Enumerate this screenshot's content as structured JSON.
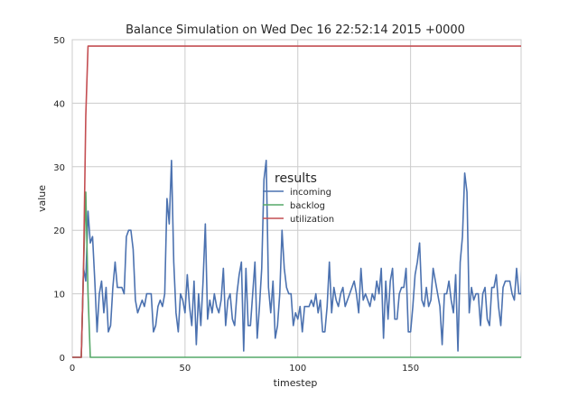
{
  "chart_data": {
    "type": "line",
    "title": "Balance Simulation on Wed Dec 16 22:52:14 2015 +0000",
    "xlabel": "timestep",
    "ylabel": "value",
    "xlim": [
      0,
      199
    ],
    "ylim": [
      0,
      50
    ],
    "xticks": [
      0,
      50,
      100,
      150
    ],
    "yticks": [
      0,
      10,
      20,
      30,
      40,
      50
    ],
    "grid": true,
    "legend": {
      "title": "results",
      "placement": "center"
    },
    "series": [
      {
        "name": "incoming",
        "color": "#4c72b0",
        "points": [
          [
            0,
            0
          ],
          [
            4,
            0
          ],
          [
            5,
            14
          ],
          [
            6,
            12
          ],
          [
            7,
            23
          ],
          [
            8,
            18
          ],
          [
            9,
            19
          ],
          [
            10,
            12
          ],
          [
            11,
            4
          ],
          [
            12,
            10
          ],
          [
            13,
            12
          ],
          [
            14,
            7
          ],
          [
            15,
            11
          ],
          [
            16,
            4
          ],
          [
            17,
            5
          ],
          [
            18,
            11
          ],
          [
            19,
            15
          ],
          [
            20,
            11
          ],
          [
            21,
            11
          ],
          [
            22,
            11
          ],
          [
            23,
            10
          ],
          [
            24,
            19
          ],
          [
            25,
            20
          ],
          [
            26,
            20
          ],
          [
            27,
            17
          ],
          [
            28,
            9
          ],
          [
            29,
            7
          ],
          [
            30,
            8
          ],
          [
            31,
            9
          ],
          [
            32,
            8
          ],
          [
            33,
            10
          ],
          [
            34,
            10
          ],
          [
            35,
            10
          ],
          [
            36,
            4
          ],
          [
            37,
            5
          ],
          [
            38,
            8
          ],
          [
            39,
            9
          ],
          [
            40,
            8
          ],
          [
            41,
            10
          ],
          [
            42,
            25
          ],
          [
            43,
            21
          ],
          [
            44,
            31
          ],
          [
            45,
            15
          ],
          [
            46,
            7
          ],
          [
            47,
            4
          ],
          [
            48,
            10
          ],
          [
            49,
            9
          ],
          [
            50,
            7
          ],
          [
            51,
            13
          ],
          [
            52,
            8
          ],
          [
            53,
            5
          ],
          [
            54,
            12
          ],
          [
            55,
            2
          ],
          [
            56,
            10
          ],
          [
            57,
            5
          ],
          [
            58,
            12
          ],
          [
            59,
            21
          ],
          [
            60,
            6
          ],
          [
            61,
            9
          ],
          [
            62,
            7
          ],
          [
            63,
            10
          ],
          [
            64,
            8
          ],
          [
            65,
            7
          ],
          [
            66,
            9
          ],
          [
            67,
            14
          ],
          [
            68,
            5
          ],
          [
            69,
            9
          ],
          [
            70,
            10
          ],
          [
            71,
            6
          ],
          [
            72,
            5
          ],
          [
            73,
            10
          ],
          [
            74,
            13
          ],
          [
            75,
            15
          ],
          [
            76,
            1
          ],
          [
            77,
            14
          ],
          [
            78,
            5
          ],
          [
            79,
            5
          ],
          [
            80,
            10
          ],
          [
            81,
            15
          ],
          [
            82,
            3
          ],
          [
            83,
            8
          ],
          [
            84,
            14
          ],
          [
            85,
            28
          ],
          [
            86,
            31
          ],
          [
            87,
            11
          ],
          [
            88,
            7
          ],
          [
            89,
            12
          ],
          [
            90,
            3
          ],
          [
            91,
            5
          ],
          [
            92,
            10
          ],
          [
            93,
            20
          ],
          [
            94,
            14
          ],
          [
            95,
            11
          ],
          [
            96,
            10
          ],
          [
            97,
            10
          ],
          [
            98,
            5
          ],
          [
            99,
            7
          ],
          [
            100,
            6
          ],
          [
            101,
            8
          ],
          [
            102,
            4
          ],
          [
            103,
            8
          ],
          [
            104,
            8
          ],
          [
            105,
            8
          ],
          [
            106,
            9
          ],
          [
            107,
            8
          ],
          [
            108,
            10
          ],
          [
            109,
            7
          ],
          [
            110,
            9
          ],
          [
            111,
            4
          ],
          [
            112,
            4
          ],
          [
            113,
            8
          ],
          [
            114,
            15
          ],
          [
            115,
            7
          ],
          [
            116,
            11
          ],
          [
            117,
            9
          ],
          [
            118,
            8
          ],
          [
            119,
            10
          ],
          [
            120,
            11
          ],
          [
            121,
            8
          ],
          [
            122,
            9
          ],
          [
            123,
            10
          ],
          [
            124,
            11
          ],
          [
            125,
            12
          ],
          [
            126,
            10
          ],
          [
            127,
            7
          ],
          [
            128,
            14
          ],
          [
            129,
            9
          ],
          [
            130,
            10
          ],
          [
            131,
            9
          ],
          [
            132,
            8
          ],
          [
            133,
            10
          ],
          [
            134,
            9
          ],
          [
            135,
            12
          ],
          [
            136,
            10
          ],
          [
            137,
            14
          ],
          [
            138,
            3
          ],
          [
            139,
            12
          ],
          [
            140,
            6
          ],
          [
            141,
            12
          ],
          [
            142,
            14
          ],
          [
            143,
            6
          ],
          [
            144,
            6
          ],
          [
            145,
            10
          ],
          [
            146,
            11
          ],
          [
            147,
            11
          ],
          [
            148,
            14
          ],
          [
            149,
            4
          ],
          [
            150,
            4
          ],
          [
            151,
            8
          ],
          [
            152,
            13
          ],
          [
            153,
            15
          ],
          [
            154,
            18
          ],
          [
            155,
            9
          ],
          [
            156,
            8
          ],
          [
            157,
            11
          ],
          [
            158,
            8
          ],
          [
            159,
            9
          ],
          [
            160,
            14
          ],
          [
            161,
            12
          ],
          [
            162,
            10
          ],
          [
            163,
            8
          ],
          [
            164,
            2
          ],
          [
            165,
            10
          ],
          [
            166,
            10
          ],
          [
            167,
            12
          ],
          [
            168,
            9
          ],
          [
            169,
            7
          ],
          [
            170,
            13
          ],
          [
            171,
            1
          ],
          [
            172,
            15
          ],
          [
            173,
            19
          ],
          [
            174,
            29
          ],
          [
            175,
            26
          ],
          [
            176,
            7
          ],
          [
            177,
            11
          ],
          [
            178,
            9
          ],
          [
            179,
            10
          ],
          [
            180,
            10
          ],
          [
            181,
            5
          ],
          [
            182,
            10
          ],
          [
            183,
            11
          ],
          [
            184,
            6
          ],
          [
            185,
            5
          ],
          [
            186,
            11
          ],
          [
            187,
            11
          ],
          [
            188,
            13
          ],
          [
            189,
            8
          ],
          [
            190,
            5
          ],
          [
            191,
            11
          ],
          [
            192,
            12
          ],
          [
            193,
            12
          ],
          [
            194,
            12
          ],
          [
            195,
            10
          ],
          [
            196,
            9
          ],
          [
            197,
            14
          ],
          [
            198,
            10
          ],
          [
            199,
            10
          ],
          [
            200,
            22
          ],
          [
            201,
            26
          ],
          [
            202,
            13
          ],
          [
            203,
            8
          ]
        ]
      },
      {
        "name": "backlog",
        "color": "#55a868",
        "points": [
          [
            0,
            0
          ],
          [
            4,
            0
          ],
          [
            5,
            14
          ],
          [
            6,
            26
          ],
          [
            7,
            10
          ],
          [
            8,
            0
          ],
          [
            199,
            0
          ]
        ]
      },
      {
        "name": "utilization",
        "color": "#c44e52",
        "points": [
          [
            0,
            0
          ],
          [
            4,
            0
          ],
          [
            5,
            14
          ],
          [
            6,
            38
          ],
          [
            7,
            49
          ],
          [
            199,
            49
          ]
        ]
      }
    ]
  }
}
